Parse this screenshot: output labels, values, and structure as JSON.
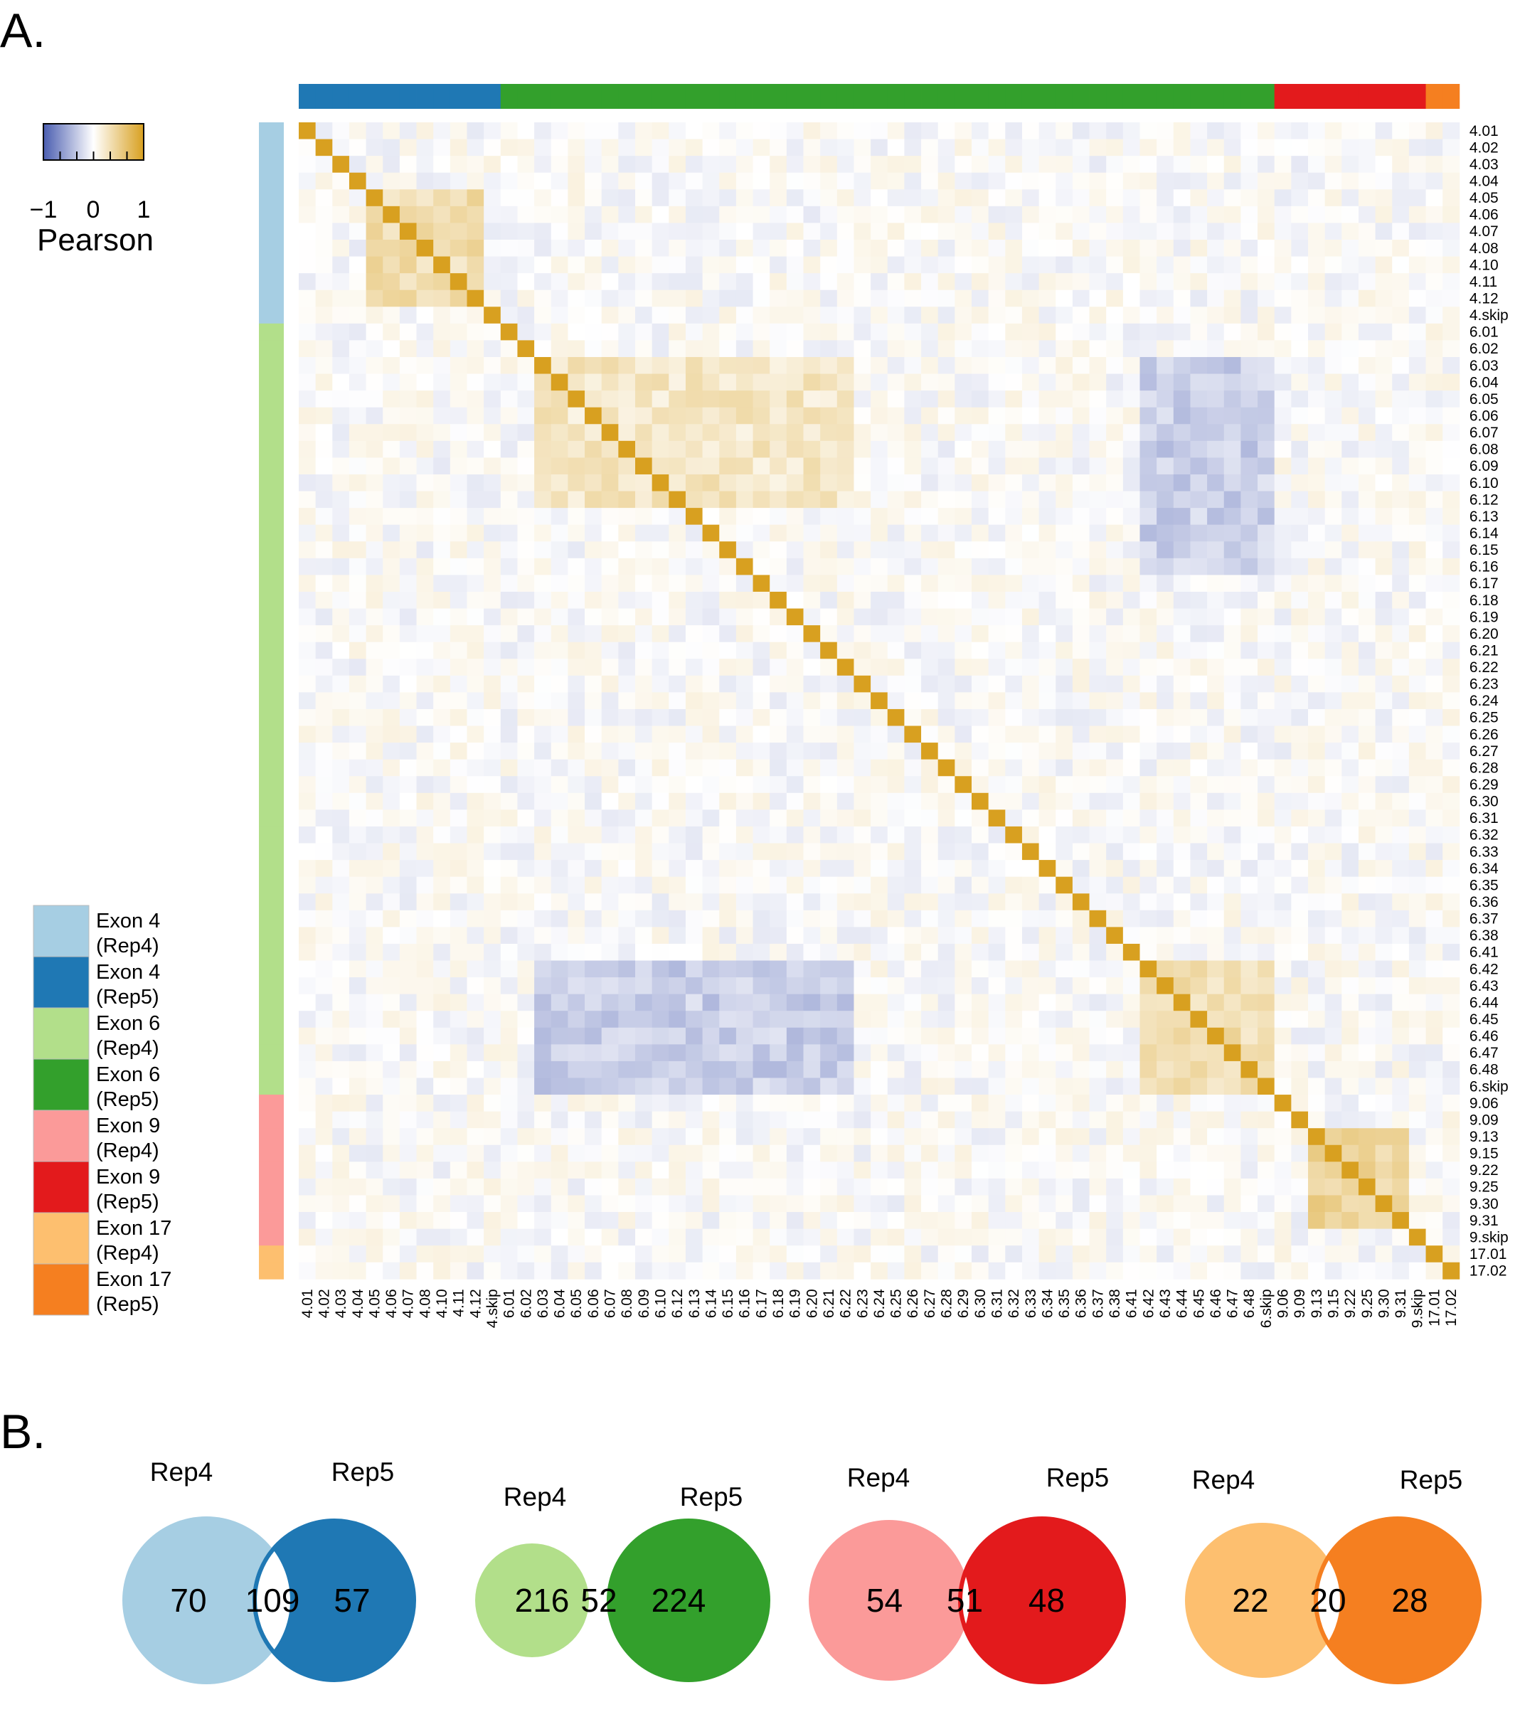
{
  "panels": {
    "a_label": "A.",
    "b_label": "B."
  },
  "colors": {
    "exon4_rep4": "#a6cee3",
    "exon4_rep5": "#1f78b4",
    "exon6_rep4": "#b2df8a",
    "exon6_rep5": "#33a02c",
    "exon9_rep4": "#fb9a99",
    "exon9_rep5": "#e31a1c",
    "exon17_rep4": "#fdbf6f",
    "exon17_rep5": "#f57f20",
    "scale_low": "#4a5db0",
    "scale_mid": "#ffffff",
    "scale_high": "#d8a020"
  },
  "colorscale": {
    "title": "Pearson",
    "ticks": [
      "−1",
      "0",
      "1"
    ],
    "range": [
      -1,
      1
    ]
  },
  "legend": [
    {
      "line1": "Exon 4",
      "line2": "(Rep4)",
      "color": "#a6cee3"
    },
    {
      "line1": "Exon 4",
      "line2": "(Rep5)",
      "color": "#1f78b4"
    },
    {
      "line1": "Exon 6",
      "line2": "(Rep4)",
      "color": "#b2df8a"
    },
    {
      "line1": "Exon 6",
      "line2": "(Rep5)",
      "color": "#33a02c"
    },
    {
      "line1": "Exon 9",
      "line2": "(Rep4)",
      "color": "#fb9a99"
    },
    {
      "line1": "Exon 9",
      "line2": "(Rep5)",
      "color": "#e31a1c"
    },
    {
      "line1": "Exon 17",
      "line2": "(Rep4)",
      "color": "#fdbf6f"
    },
    {
      "line1": "Exon 17",
      "line2": "(Rep5)",
      "color": "#f57f20"
    }
  ],
  "chart_data": [
    {
      "type": "heatmap",
      "value": "Pearson",
      "range": [
        -1,
        1
      ],
      "labels": [
        "4.01",
        "4.02",
        "4.03",
        "4.04",
        "4.05",
        "4.06",
        "4.07",
        "4.08",
        "4.10",
        "4.11",
        "4.12",
        "4.skip",
        "6.01",
        "6.02",
        "6.03",
        "6.04",
        "6.05",
        "6.06",
        "6.07",
        "6.08",
        "6.09",
        "6.10",
        "6.12",
        "6.13",
        "6.14",
        "6.15",
        "6.16",
        "6.17",
        "6.18",
        "6.19",
        "6.20",
        "6.21",
        "6.22",
        "6.23",
        "6.24",
        "6.25",
        "6.26",
        "6.27",
        "6.28",
        "6.29",
        "6.30",
        "6.31",
        "6.32",
        "6.33",
        "6.34",
        "6.35",
        "6.36",
        "6.37",
        "6.38",
        "6.41",
        "6.42",
        "6.43",
        "6.44",
        "6.45",
        "6.46",
        "6.47",
        "6.48",
        "6.skip",
        "9.06",
        "9.09",
        "9.13",
        "9.15",
        "9.22",
        "9.25",
        "9.30",
        "9.31",
        "9.skip",
        "17.01",
        "17.02"
      ],
      "row_groups": [
        {
          "name": "Exon 4 (Rep4)",
          "count": 12
        },
        {
          "name": "Exon 6 (Rep4)",
          "count": 46
        },
        {
          "name": "Exon 9 (Rep4)",
          "count": 9
        },
        {
          "name": "Exon 17 (Rep4)",
          "count": 2
        }
      ],
      "col_groups": [
        {
          "name": "Exon 4 (Rep5)",
          "count": 12
        },
        {
          "name": "Exon 6 (Rep5)",
          "count": 46
        },
        {
          "name": "Exon 9 (Rep5)",
          "count": 9
        },
        {
          "name": "Exon 17 (Rep5)",
          "count": 2
        }
      ],
      "diagonal": 1,
      "correlated_blocks": [
        {
          "rows": [
            "4.05",
            "4.12"
          ],
          "cols": [
            "4.05",
            "4.12"
          ],
          "approx": 0.35
        },
        {
          "rows": [
            "6.03",
            "6.12"
          ],
          "cols": [
            "6.03",
            "6.22"
          ],
          "approx": 0.25
        },
        {
          "rows": [
            "6.42",
            "6.skip"
          ],
          "cols": [
            "6.42",
            "6.skip"
          ],
          "approx": 0.35
        },
        {
          "rows": [
            "9.13",
            "9.31"
          ],
          "cols": [
            "9.13",
            "9.31"
          ],
          "approx": 0.45
        },
        {
          "rows": [
            "6.03",
            "6.16"
          ],
          "cols": [
            "6.42",
            "6.skip"
          ],
          "approx": -0.3
        },
        {
          "rows": [
            "6.42",
            "6.skip"
          ],
          "cols": [
            "6.03",
            "6.22"
          ],
          "approx": -0.3
        }
      ]
    },
    {
      "type": "venn",
      "sets": [
        {
          "name": "Exon 4",
          "rep4_label": "Rep4",
          "rep5_label": "Rep5",
          "rep4_only": 70,
          "shared": 109,
          "rep5_only": 57,
          "rep4_color": "#a6cee3",
          "rep5_color": "#1f78b4"
        },
        {
          "name": "Exon 6",
          "rep4_label": "Rep4",
          "rep5_label": "Rep5",
          "rep4_only": 216,
          "shared": 52,
          "rep5_only": 224,
          "rep4_color": "#b2df8a",
          "rep5_color": "#33a02c"
        },
        {
          "name": "Exon 9",
          "rep4_label": "Rep4",
          "rep5_label": "Rep5",
          "rep4_only": 54,
          "shared": 51,
          "rep5_only": 48,
          "rep4_color": "#fb9a99",
          "rep5_color": "#e31a1c"
        },
        {
          "name": "Exon 17",
          "rep4_label": "Rep4",
          "rep5_label": "Rep5",
          "rep4_only": 22,
          "shared": 20,
          "rep5_only": 28,
          "rep4_color": "#fdbf6f",
          "rep5_color": "#f57f20"
        }
      ]
    }
  ]
}
